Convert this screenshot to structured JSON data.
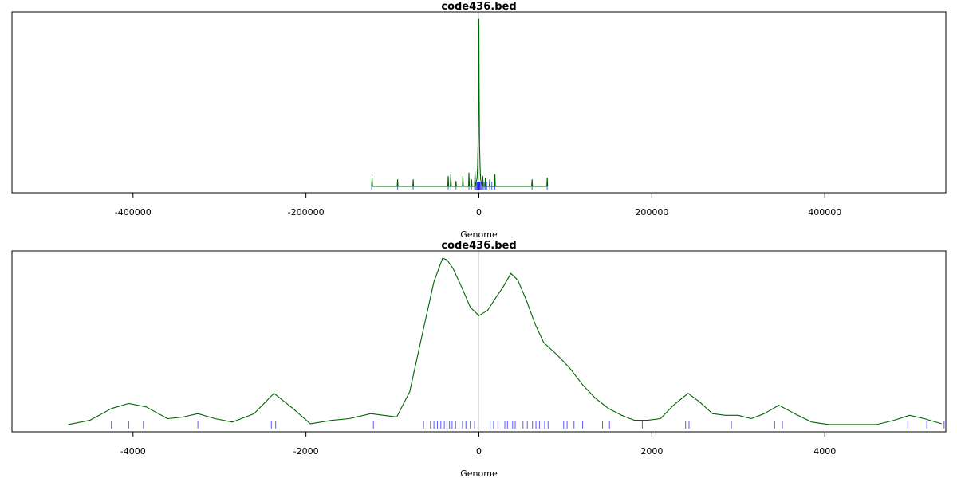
{
  "chart_data": [
    {
      "type": "line",
      "title": "code436.bed",
      "xlabel": "Genome",
      "ylabel": "",
      "xlim": [
        -540000,
        540000
      ],
      "xticks": [
        -400000,
        -200000,
        0,
        200000,
        400000
      ],
      "xtick_labels": [
        "-400000",
        "-200000",
        "0",
        "200000",
        "400000"
      ],
      "reference_line_x": 0,
      "series": [
        {
          "color": "#006400",
          "x": [
            -124000,
            -123500,
            -123000,
            -110000,
            -94500,
            -94000,
            -93500,
            -76500,
            -76000,
            -75500,
            -36000,
            -35500,
            -35000,
            -33000,
            -32500,
            -32000,
            -27000,
            -26500,
            -26000,
            -19000,
            -18500,
            -18000,
            -12000,
            -11500,
            -11000,
            -9000,
            -8500,
            -8000,
            -5000,
            -4500,
            -4000,
            -2000,
            -1500,
            -700,
            -300,
            0,
            300,
            700,
            1500,
            2000,
            4000,
            4500,
            5000,
            7000,
            7500,
            8000,
            12000,
            12500,
            13000,
            18000,
            18500,
            19000,
            40000,
            61000,
            61500,
            62000,
            78500,
            79000,
            79500
          ],
          "y": [
            0,
            0.05,
            0,
            0,
            0,
            0.04,
            0,
            0,
            0.04,
            0,
            0,
            0.06,
            0,
            0,
            0.07,
            0,
            0,
            0.03,
            0,
            0,
            0.06,
            0,
            0,
            0.08,
            0,
            0,
            0.04,
            0,
            0,
            0.09,
            0,
            0.05,
            0.12,
            0.3,
            0.65,
            0.99,
            0.6,
            0.25,
            0.1,
            0.04,
            0,
            0.06,
            0,
            0,
            0.05,
            0,
            0,
            0.04,
            0,
            0,
            0.07,
            0,
            0,
            0,
            0.04,
            0,
            0,
            0.05,
            0
          ]
        }
      ],
      "rug": {
        "color": "#0000ff",
        "x": [
          -124000,
          -94000,
          -76000,
          -35500,
          -32500,
          -26500,
          -18500,
          -11500,
          -8500,
          -5000,
          -4000,
          -3000,
          -2000,
          -1500,
          -1000,
          -500,
          0,
          500,
          1000,
          1500,
          2500,
          3500,
          4500,
          6000,
          7500,
          9000,
          12500,
          15000,
          18500,
          61500,
          79000
        ]
      }
    },
    {
      "type": "line",
      "title": "code436.bed",
      "xlabel": "Genome",
      "ylabel": "",
      "xlim": [
        -5400,
        5400
      ],
      "xticks": [
        -4000,
        -2000,
        0,
        2000,
        4000
      ],
      "xtick_labels": [
        "-4000",
        "-2000",
        "0",
        "2000",
        "4000"
      ],
      "reference_line_x": 0,
      "series": [
        {
          "color": "#006400",
          "x": [
            -4750,
            -4500,
            -4250,
            -4050,
            -3850,
            -3600,
            -3420,
            -3250,
            -3050,
            -2850,
            -2600,
            -2370,
            -2150,
            -1950,
            -1700,
            -1500,
            -1250,
            -1100,
            -950,
            -800,
            -650,
            -520,
            -420,
            -370,
            -300,
            -200,
            -100,
            0,
            100,
            200,
            280,
            370,
            450,
            550,
            650,
            750,
            900,
            1050,
            1200,
            1350,
            1500,
            1650,
            1800,
            1950,
            2100,
            2250,
            2420,
            2550,
            2700,
            2850,
            3000,
            3150,
            3300,
            3470,
            3650,
            3850,
            4050,
            4300,
            4600,
            4800,
            4980,
            5150,
            5350
          ],
          "y": [
            0.005,
            0.03,
            0.1,
            0.13,
            0.11,
            0.04,
            0.05,
            0.07,
            0.04,
            0.02,
            0.07,
            0.19,
            0.1,
            0.01,
            0.03,
            0.04,
            0.07,
            0.06,
            0.05,
            0.2,
            0.55,
            0.85,
            0.99,
            0.98,
            0.93,
            0.82,
            0.7,
            0.65,
            0.68,
            0.76,
            0.82,
            0.9,
            0.86,
            0.74,
            0.6,
            0.49,
            0.42,
            0.34,
            0.24,
            0.16,
            0.1,
            0.06,
            0.03,
            0.03,
            0.04,
            0.12,
            0.19,
            0.14,
            0.07,
            0.06,
            0.06,
            0.04,
            0.07,
            0.12,
            0.07,
            0.02,
            0.005,
            0.005,
            0.005,
            0.03,
            0.06,
            0.04,
            0.01
          ]
        }
      ],
      "rug": {
        "color": "#0000ff",
        "x": [
          -4250,
          -4050,
          -3880,
          -3250,
          -2400,
          -2350,
          -1220,
          -640,
          -600,
          -560,
          -520,
          -480,
          -440,
          -400,
          -370,
          -340,
          -310,
          -270,
          -230,
          -190,
          -150,
          -100,
          -50,
          130,
          170,
          220,
          300,
          330,
          360,
          390,
          420,
          510,
          560,
          620,
          660,
          700,
          760,
          800,
          980,
          1020,
          1100,
          1200,
          1430,
          1510,
          1890,
          2390,
          2430,
          2920,
          3420,
          3510,
          4960,
          5180,
          5380
        ]
      }
    }
  ]
}
